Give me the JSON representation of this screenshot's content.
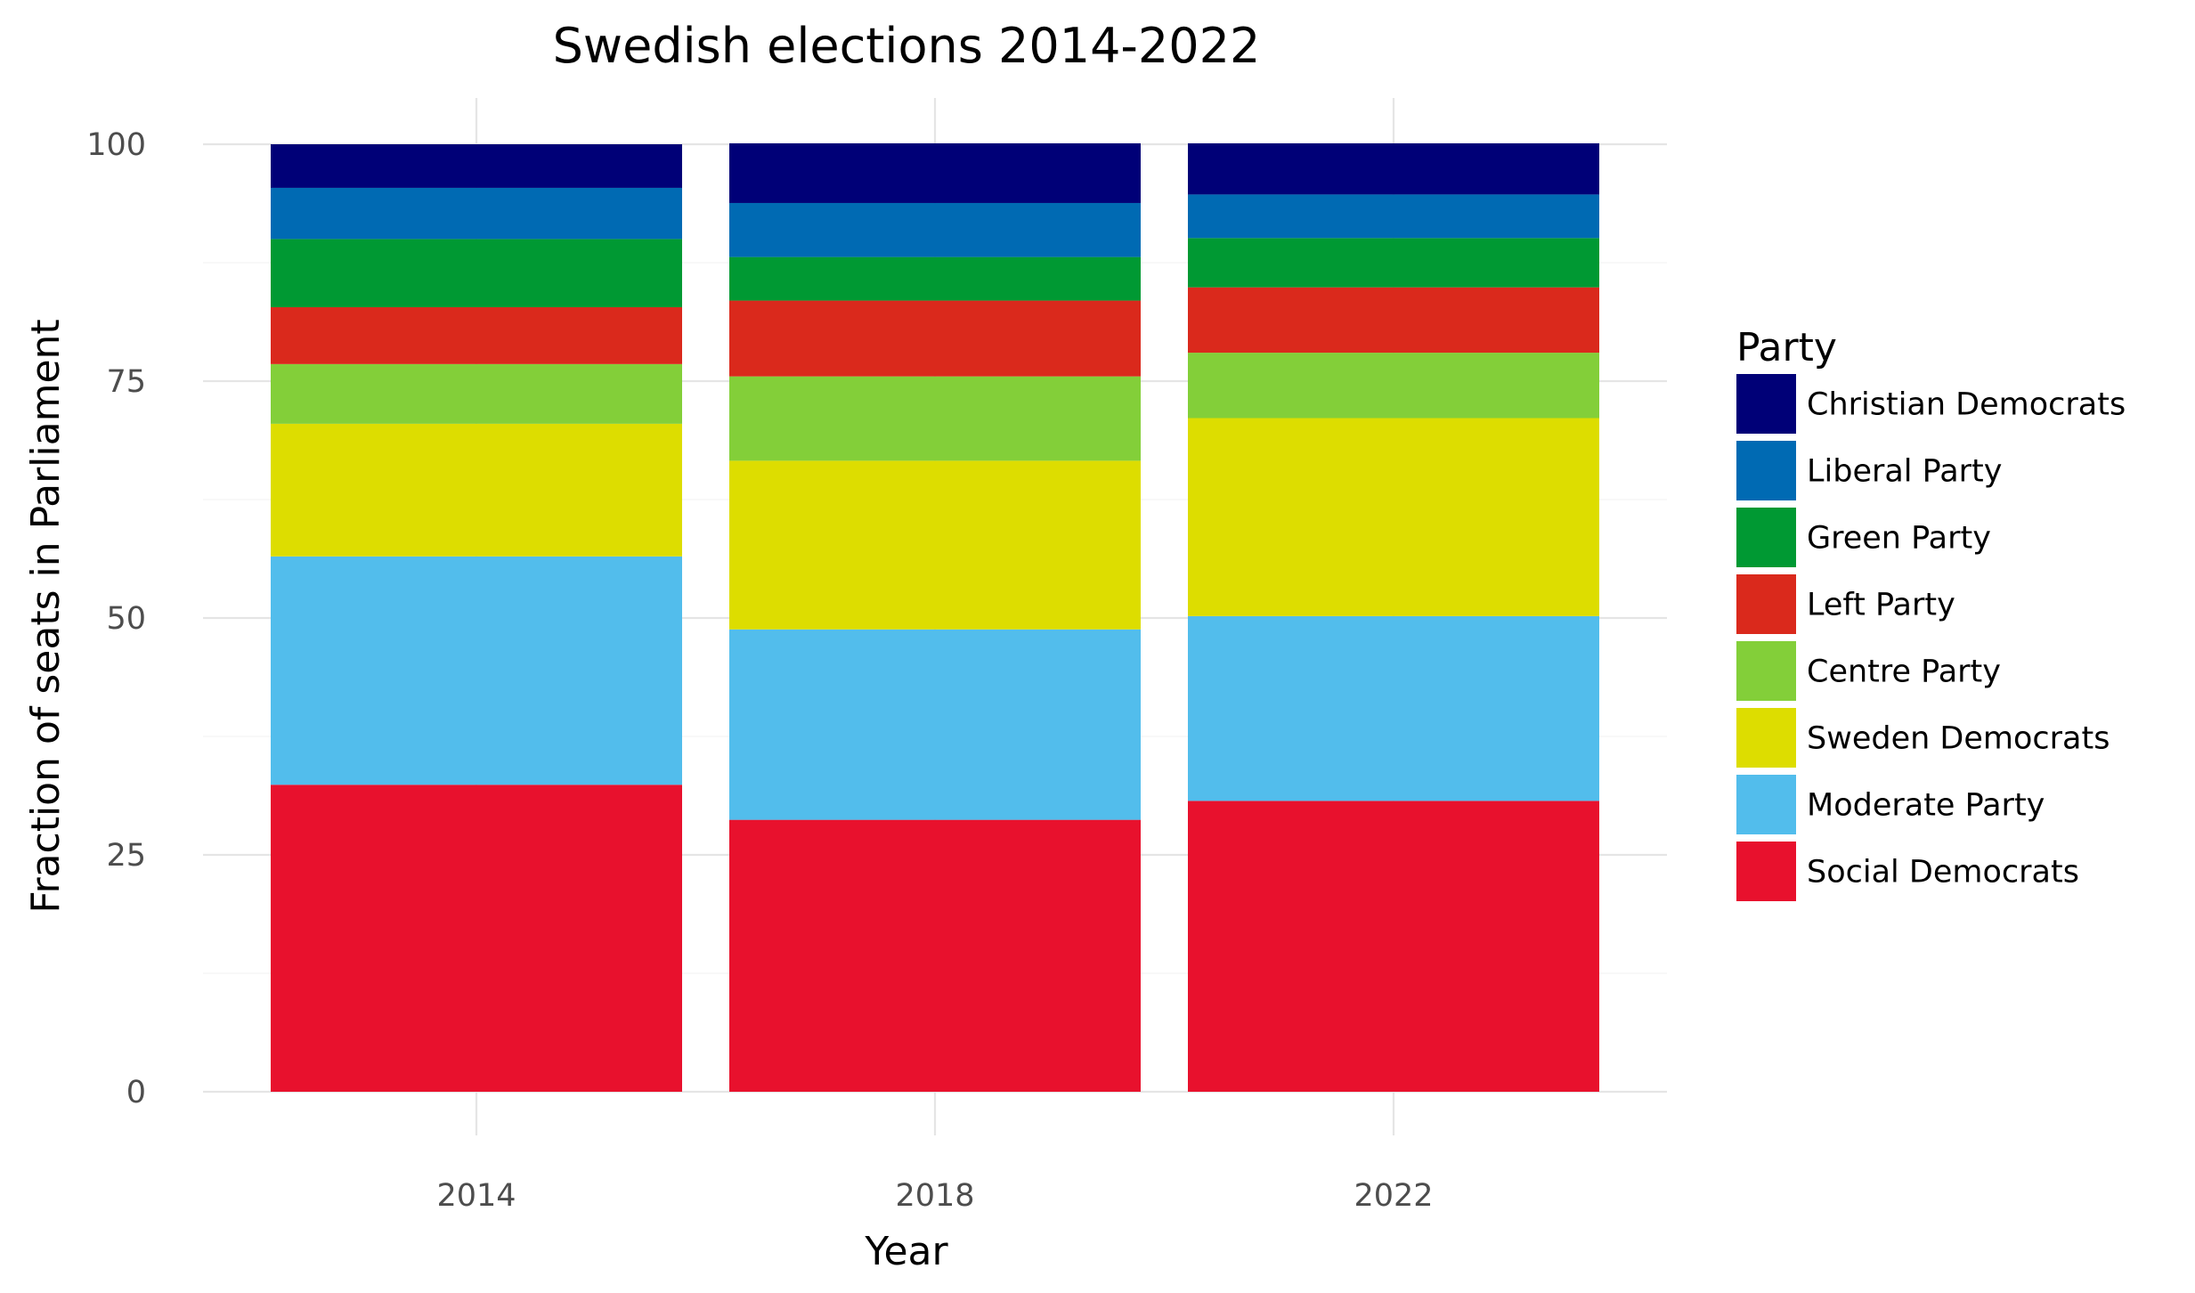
{
  "chart_data": {
    "type": "bar",
    "stacked": true,
    "title": "Swedish elections 2014-2022",
    "xlabel": "Year",
    "ylabel": "Fraction of seats in Parliament",
    "categories": [
      "2014",
      "2018",
      "2022"
    ],
    "ylim": [
      0,
      100
    ],
    "yticks": [
      0,
      25,
      50,
      75,
      100
    ],
    "grid": true,
    "legend": {
      "title": "Party",
      "position": "right"
    },
    "series": [
      {
        "name": "Social Democrats",
        "color": "#e8112d",
        "values": [
          32.4,
          28.7,
          30.7
        ]
      },
      {
        "name": "Moderate Party",
        "color": "#52bdec",
        "values": [
          24.1,
          20.1,
          19.5
        ]
      },
      {
        "name": "Sweden Democrats",
        "color": "#dddd00",
        "values": [
          14.0,
          17.8,
          20.9
        ]
      },
      {
        "name": "Centre Party",
        "color": "#83cf39",
        "values": [
          6.3,
          8.9,
          6.9
        ]
      },
      {
        "name": "Left Party",
        "color": "#da291c",
        "values": [
          6.0,
          8.0,
          6.9
        ]
      },
      {
        "name": "Green Party",
        "color": "#009933",
        "values": [
          7.2,
          4.6,
          5.2
        ]
      },
      {
        "name": "Liberal Party",
        "color": "#006ab3",
        "values": [
          5.4,
          5.7,
          4.6
        ]
      },
      {
        "name": "Christian Democrats",
        "color": "#000077",
        "values": [
          4.6,
          6.3,
          5.4
        ]
      }
    ]
  }
}
